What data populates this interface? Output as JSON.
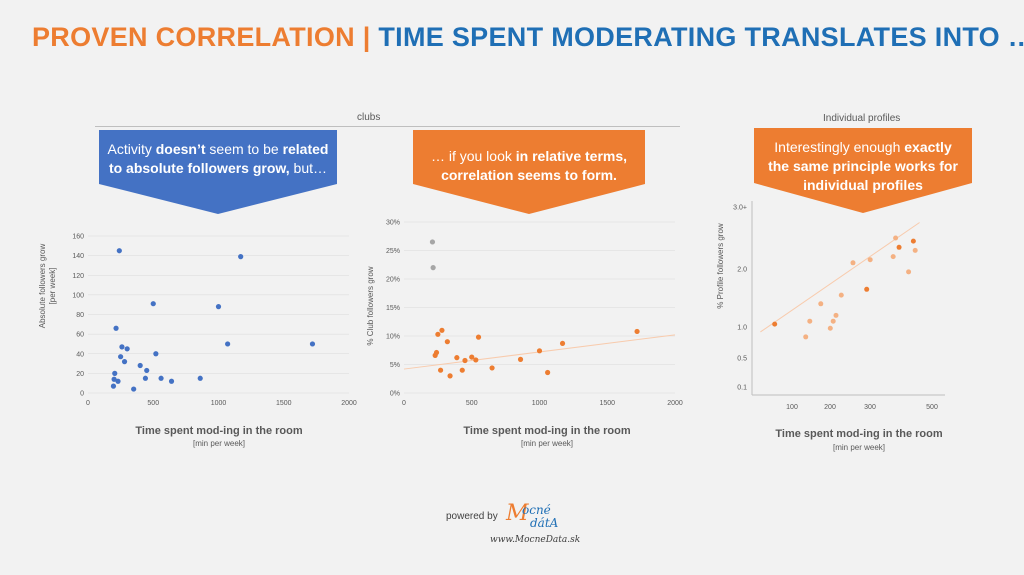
{
  "header": {
    "title_part1": "PROVEN CORRELATION | ",
    "title_part2": "TIME SPENT MODERATING TRANSLATES INTO …"
  },
  "sections": {
    "clubs_label": "clubs",
    "individual_label": "Individual profiles"
  },
  "callouts": {
    "c1": {
      "pre": "Activity ",
      "b1": "doesn’t",
      "mid": " seem to be ",
      "b2": "related to absolute followers grow,",
      "post": " but…"
    },
    "c2": {
      "pre": "… if you look ",
      "b1": "in relative terms, correlation seems to form.",
      "mid": "",
      "b2": "",
      "post": ""
    },
    "c3": {
      "pre": "Interestingly enough ",
      "b1": "exactly the same principle works for individual profiles",
      "mid": "",
      "b2": "",
      "post": ""
    }
  },
  "colors": {
    "orange": "#ed7d31",
    "blue": "#4472c4",
    "lightorange": "#f4b183",
    "grey": "#a6a6a6"
  },
  "footer": {
    "powered_by": "powered by",
    "logo_m": "M",
    "logo_ocne": "ocné",
    "logo_data": "dátA",
    "url": "www.MocneData.sk"
  },
  "chart_data": [
    {
      "type": "scatter",
      "xlabel": "Time spent mod-ing in the room",
      "xlabel_sub": "[min per week]",
      "ylabel": "Absolute followers grow",
      "ylabel_sub": "[per week]",
      "xlim": [
        0,
        2000
      ],
      "ylim": [
        0,
        160
      ],
      "xticks": [
        "0",
        "500",
        "1000",
        "1500",
        "2000"
      ],
      "yticks": [
        "0",
        "20",
        "40",
        "60",
        "80",
        "100",
        "120",
        "140",
        "160"
      ],
      "series": [
        {
          "color": "#4472c4",
          "points": [
            [
              195,
              7
            ],
            [
              205,
              20
            ],
            [
              200,
              14
            ],
            [
              215,
              66
            ],
            [
              230,
              12
            ],
            [
              240,
              145
            ],
            [
              250,
              37
            ],
            [
              260,
              47
            ],
            [
              280,
              32
            ],
            [
              300,
              45
            ],
            [
              350,
              4
            ],
            [
              400,
              28
            ],
            [
              440,
              15
            ],
            [
              450,
              23
            ],
            [
              500,
              91
            ],
            [
              520,
              40
            ],
            [
              560,
              15
            ],
            [
              640,
              12
            ],
            [
              860,
              15
            ],
            [
              1000,
              88
            ],
            [
              1070,
              50
            ],
            [
              1170,
              139
            ],
            [
              1720,
              50
            ]
          ]
        }
      ]
    },
    {
      "type": "scatter",
      "xlabel": "Time spent mod-ing in the room",
      "xlabel_sub": "[min per week]",
      "ylabel": "% Club followers grow",
      "xlim": [
        0,
        2000
      ],
      "ylim": [
        0,
        30
      ],
      "xticks": [
        "0",
        "500",
        "1000",
        "1500",
        "2000"
      ],
      "yticks": [
        "0%",
        "5%",
        "10%",
        "15%",
        "20%",
        "25%",
        "30%"
      ],
      "trendline": {
        "from": [
          0,
          4.2
        ],
        "to": [
          2000,
          10.2
        ]
      },
      "series": [
        {
          "color": "#a6a6a6",
          "points": [
            [
              210,
              26.5
            ],
            [
              215,
              22
            ]
          ]
        },
        {
          "color": "#ed7d31",
          "points": [
            [
              230,
              6.6
            ],
            [
              240,
              7.1
            ],
            [
              250,
              10.3
            ],
            [
              270,
              4
            ],
            [
              280,
              11
            ],
            [
              320,
              9
            ],
            [
              340,
              3
            ],
            [
              390,
              6.2
            ],
            [
              430,
              4
            ],
            [
              450,
              5.7
            ],
            [
              500,
              6.3
            ],
            [
              530,
              5.8
            ],
            [
              550,
              9.8
            ],
            [
              650,
              4.4
            ],
            [
              860,
              5.9
            ],
            [
              1000,
              7.4
            ],
            [
              1060,
              3.6
            ],
            [
              1170,
              8.7
            ],
            [
              1720,
              10.8
            ]
          ]
        }
      ]
    },
    {
      "type": "scatter",
      "xlabel": "Time spent mod-ing in the room",
      "xlabel_sub": "[min per week]",
      "ylabel": "% Profile followers grow",
      "scale": "log",
      "xticks": [
        "100",
        "200",
        "300",
        "500"
      ],
      "yticks": [
        "0.1",
        "0.5",
        "1.0",
        "2.0",
        "3.0+"
      ],
      "trendline": true,
      "series": [
        {
          "color": "#f4b183",
          "points": [
            [
              85,
              0.84
            ],
            [
              90,
              1.1
            ],
            [
              105,
              1.4
            ],
            [
              125,
              1.1
            ],
            [
              120,
              0.98
            ],
            [
              130,
              1.2
            ],
            [
              140,
              1.55
            ],
            [
              165,
              2.1
            ],
            [
              210,
              2.15
            ],
            [
              290,
              2.2
            ],
            [
              300,
              2.5
            ],
            [
              360,
              1.95
            ],
            [
              395,
              2.3
            ]
          ]
        },
        {
          "color": "#ed7d31",
          "points": [
            [
              55,
              1.05
            ],
            [
              200,
              1.65
            ],
            [
              315,
              2.35
            ],
            [
              385,
              2.45
            ]
          ]
        }
      ]
    }
  ]
}
